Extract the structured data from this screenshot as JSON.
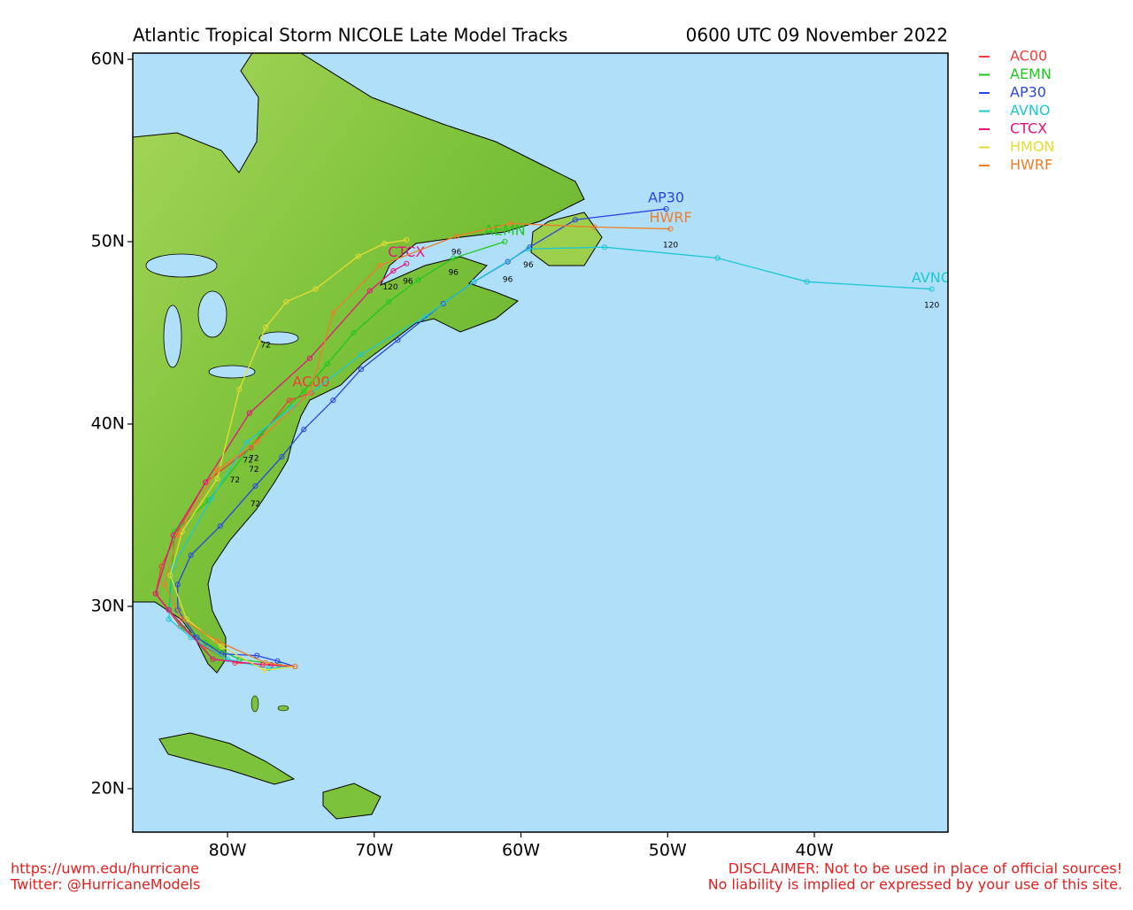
{
  "chart_data": {
    "type": "track-map",
    "title": "Atlantic Tropical Storm NICOLE Late Model Tracks",
    "timestamp": "0600 UTC 09 November 2022",
    "xlim": [
      -86.46,
      -30.89
    ],
    "ylim": [
      17.62,
      60.34
    ],
    "xticks": [
      {
        "value": -80,
        "label": "80W"
      },
      {
        "value": -70,
        "label": "70W"
      },
      {
        "value": -60,
        "label": "60W"
      },
      {
        "value": -50,
        "label": "50W"
      },
      {
        "value": -40,
        "label": "40W"
      }
    ],
    "yticks": [
      {
        "value": 20,
        "label": "20N"
      },
      {
        "value": 30,
        "label": "30N"
      },
      {
        "value": 40,
        "label": "40N"
      },
      {
        "value": 50,
        "label": "50N"
      },
      {
        "value": 60,
        "label": "60N"
      }
    ],
    "tracks": [
      {
        "name": "AC00",
        "color": "#f03c3c",
        "show_end_label": true,
        "lon": [
          -75.4,
          -77.0,
          -79.5,
          -81.6,
          -83.2,
          -84.9,
          -84.5,
          -83.4,
          -81.5,
          -78.4,
          -75.8,
          -74.3
        ],
        "lat": [
          26.7,
          26.8,
          26.9,
          27.8,
          28.9,
          30.7,
          32.2,
          34.1,
          36.8,
          38.7,
          41.3,
          41.7
        ],
        "hours": [
          {
            "hour": 72,
            "lon": -78.2,
            "lat": 37.8
          }
        ]
      },
      {
        "name": "AEMN",
        "color": "#1ec81e",
        "show_end_label": true,
        "lon": [
          -75.4,
          -76.5,
          -79.2,
          -81.5,
          -83.0,
          -84.0,
          -83.6,
          -81.3,
          -77.7,
          -74.8,
          -73.2,
          -71.4,
          -69.0,
          -67.0,
          -64.6,
          -61.1
        ],
        "lat": [
          26.7,
          26.8,
          27.1,
          28.0,
          28.8,
          29.8,
          34.1,
          35.8,
          39.5,
          41.8,
          43.3,
          45.0,
          46.7,
          47.9,
          49.1,
          50.0
        ],
        "hours": [
          {
            "hour": 96,
            "lon": -64.6,
            "lat": 48.6
          },
          {
            "hour": 72,
            "lon": -78.2,
            "lat": 38.4
          }
        ]
      },
      {
        "name": "AP30",
        "color": "#2846e6",
        "show_end_label": true,
        "lon": [
          -75.4,
          -76.6,
          -78.0,
          -80.4,
          -82.1,
          -83.4,
          -83.4,
          -82.5,
          -80.5,
          -78.1,
          -76.3,
          -74.8,
          -72.8,
          -70.9,
          -68.4,
          -65.3,
          -63.2,
          -60.9,
          -59.4,
          -56.3,
          -50.1
        ],
        "lat": [
          26.7,
          27.0,
          27.3,
          27.4,
          28.3,
          29.8,
          31.2,
          32.8,
          34.4,
          36.6,
          38.2,
          39.7,
          41.3,
          43.0,
          44.6,
          46.6,
          47.8,
          48.9,
          49.7,
          51.2,
          51.8
        ],
        "hours": [
          {
            "hour": 96,
            "lon": -60.9,
            "lat": 48.2
          },
          {
            "hour": 72,
            "lon": -78.1,
            "lat": 35.9
          }
        ]
      },
      {
        "name": "AVNO",
        "color": "#1ec8d2",
        "show_end_label": true,
        "lon": [
          -75.4,
          -77.2,
          -80.0,
          -82.5,
          -84.0,
          -83.7,
          -81.1,
          -78.7,
          -75.6,
          -70.9,
          -66.5,
          -63.2,
          -59.5,
          -54.3,
          -46.6,
          -40.5,
          -32.0
        ],
        "lat": [
          26.7,
          26.6,
          27.1,
          28.3,
          29.3,
          32.2,
          35.9,
          39.0,
          40.9,
          43.8,
          45.9,
          47.8,
          49.6,
          49.7,
          49.1,
          47.8,
          47.4
        ],
        "hours": [
          {
            "hour": 120,
            "lon": -32.0,
            "lat": 46.8
          },
          {
            "hour": 96,
            "lon": -59.5,
            "lat": 49.0
          },
          {
            "hour": 72,
            "lon": -78.6,
            "lat": 38.3
          }
        ]
      },
      {
        "name": "CTCX",
        "color": "#e6147d",
        "show_end_label": true,
        "lon": [
          -75.4,
          -77.6,
          -81.0,
          -84.0,
          -84.9,
          -83.7,
          -81.5,
          -78.5,
          -74.4,
          -70.3,
          -68.7,
          -67.8
        ],
        "lat": [
          26.7,
          26.8,
          27.1,
          29.8,
          30.7,
          33.9,
          36.8,
          40.6,
          43.6,
          47.3,
          48.4,
          48.8
        ],
        "hours": [
          {
            "hour": 120,
            "lon": -68.9,
            "lat": 47.8
          },
          {
            "hour": 96,
            "lon": -67.7,
            "lat": 48.1
          }
        ]
      },
      {
        "name": "HMON",
        "color": "#e6dc32",
        "show_end_label": false,
        "lon": [
          -75.4,
          -77.5,
          -80.4,
          -82.8,
          -83.9,
          -83.1,
          -80.7,
          -79.2,
          -77.4,
          -76.0,
          -74.0,
          -71.1,
          -69.3,
          -67.8
        ],
        "lat": [
          26.7,
          26.5,
          27.8,
          29.3,
          31.7,
          34.1,
          37.0,
          41.9,
          45.3,
          46.7,
          47.4,
          49.2,
          49.9,
          50.1
        ],
        "hours": [
          {
            "hour": 72,
            "lon": -77.4,
            "lat": 44.6
          }
        ]
      },
      {
        "name": "HWRF",
        "color": "#f07d28",
        "show_end_label": true,
        "lon": [
          -75.4,
          -77.4,
          -80.7,
          -83.1,
          -84.3,
          -83.4,
          -80.7,
          -78.0,
          -74.4,
          -72.8,
          -69.6,
          -64.4,
          -60.7,
          -55.0,
          -49.8
        ],
        "lat": [
          26.7,
          26.9,
          28.1,
          29.3,
          31.2,
          33.9,
          37.5,
          39.0,
          41.7,
          46.1,
          48.7,
          50.3,
          51.0,
          50.8,
          50.7
        ],
        "hours": [
          {
            "hour": 120,
            "lon": -49.8,
            "lat": 50.1
          },
          {
            "hour": 96,
            "lon": -64.4,
            "lat": 49.7
          },
          {
            "hour": 72,
            "lon": -79.5,
            "lat": 37.2
          }
        ]
      }
    ],
    "footer": {
      "url": "https://uwm.edu/hurricane",
      "twitter": "Twitter: @HurricaneModels",
      "disclaimer": "DISCLAIMER: Not to be used in place of official sources!",
      "liability": "No liability is implied or expressed by your use of this site."
    }
  }
}
